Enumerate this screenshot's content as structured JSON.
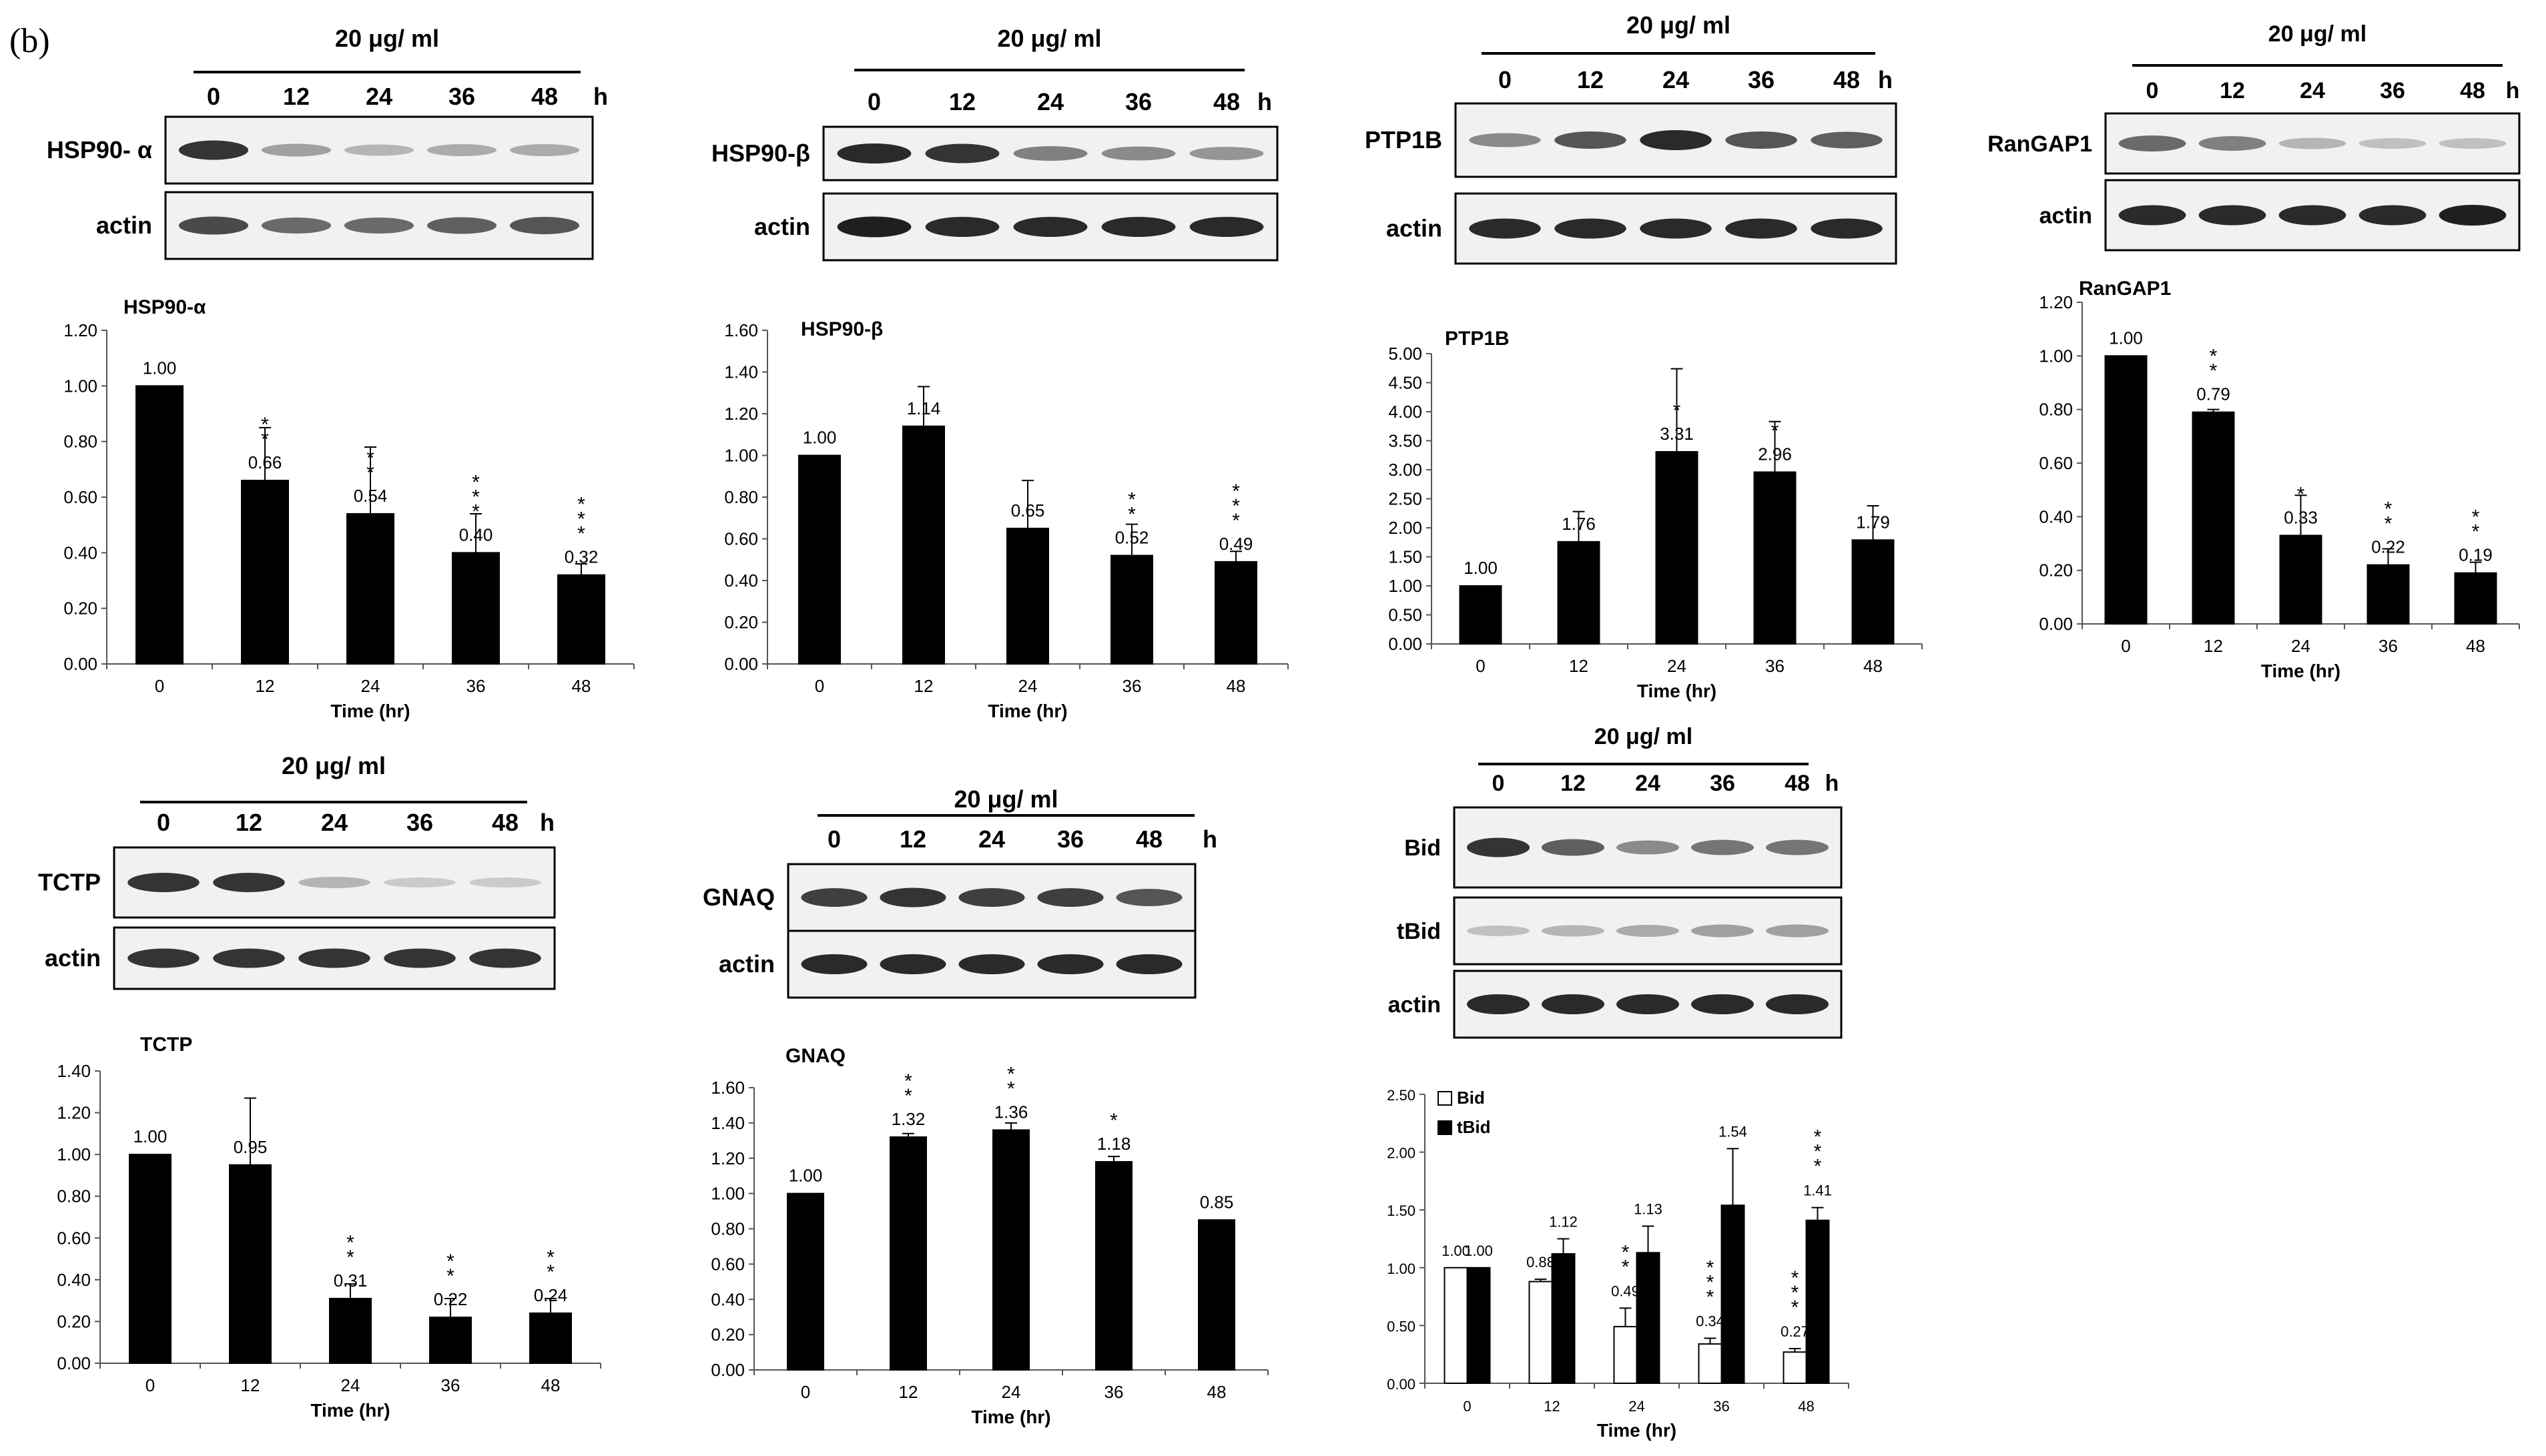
{
  "figure": {
    "panel_label": "(b)"
  },
  "blots": [
    {
      "conc_label": "20 μg/ ml",
      "lanes": [
        "0",
        "12",
        "24",
        "36",
        "48"
      ],
      "unit": "h",
      "rows": [
        {
          "label": "HSP90- α",
          "intensity": [
            0.85,
            0.35,
            0.25,
            0.3,
            0.3
          ]
        },
        {
          "label": "actin",
          "intensity": [
            0.75,
            0.6,
            0.6,
            0.65,
            0.7
          ]
        }
      ]
    },
    {
      "conc_label": "20 μg/ ml",
      "lanes": [
        "0",
        "12",
        "24",
        "36",
        "48"
      ],
      "unit": "h",
      "rows": [
        {
          "label": "HSP90-β",
          "intensity": [
            0.9,
            0.85,
            0.5,
            0.45,
            0.4
          ]
        },
        {
          "label": "actin",
          "intensity": [
            0.95,
            0.9,
            0.9,
            0.9,
            0.9
          ]
        }
      ]
    },
    {
      "conc_label": "20 μg/ ml",
      "lanes": [
        "0",
        "12",
        "24",
        "36",
        "48"
      ],
      "unit": "h",
      "rows": [
        {
          "label": "PTP1B",
          "intensity": [
            0.45,
            0.7,
            0.9,
            0.7,
            0.65
          ]
        },
        {
          "label": "actin",
          "intensity": [
            0.9,
            0.9,
            0.9,
            0.9,
            0.9
          ]
        }
      ]
    },
    {
      "conc_label": "20 μg/ ml",
      "lanes": [
        "0",
        "12",
        "24",
        "36",
        "48"
      ],
      "unit": "h",
      "rows": [
        {
          "label": "RanGAP1",
          "intensity": [
            0.6,
            0.5,
            0.25,
            0.2,
            0.2
          ]
        },
        {
          "label": "actin",
          "intensity": [
            0.9,
            0.9,
            0.9,
            0.9,
            0.95
          ]
        }
      ]
    },
    {
      "conc_label": "20 μg/ ml",
      "lanes": [
        "0",
        "12",
        "24",
        "36",
        "48"
      ],
      "unit": "h",
      "rows": [
        {
          "label": "TCTP",
          "intensity": [
            0.85,
            0.85,
            0.25,
            0.15,
            0.15
          ]
        },
        {
          "label": "actin",
          "intensity": [
            0.85,
            0.85,
            0.85,
            0.85,
            0.85
          ]
        }
      ]
    },
    {
      "conc_label": "20 μg/ ml",
      "lanes": [
        "0",
        "12",
        "24",
        "36",
        "48"
      ],
      "unit": "h",
      "rows": [
        {
          "label": "GNAQ",
          "intensity": [
            0.8,
            0.85,
            0.8,
            0.8,
            0.7
          ]
        },
        {
          "label": "actin",
          "intensity": [
            0.9,
            0.9,
            0.9,
            0.9,
            0.9
          ]
        }
      ]
    },
    {
      "conc_label": "20 μg/ ml",
      "lanes": [
        "0",
        "12",
        "24",
        "36",
        "48"
      ],
      "unit": "h",
      "rows": [
        {
          "label": "Bid",
          "intensity": [
            0.85,
            0.65,
            0.45,
            0.55,
            0.55
          ]
        },
        {
          "label": "tBid",
          "intensity": [
            0.2,
            0.25,
            0.3,
            0.35,
            0.35
          ]
        },
        {
          "label": "actin",
          "intensity": [
            0.9,
            0.9,
            0.9,
            0.9,
            0.9
          ]
        }
      ]
    }
  ],
  "chart_data": [
    {
      "type": "bar",
      "title": "HSP90-α",
      "xlabel": "Time (hr)",
      "ylabel": "",
      "categories": [
        "0",
        "12",
        "24",
        "36",
        "48"
      ],
      "ylim": [
        0,
        1.2
      ],
      "yticks": [
        "0.00",
        "0.20",
        "0.40",
        "0.60",
        "0.80",
        "1.00",
        "1.20"
      ],
      "values": [
        1.0,
        0.66,
        0.54,
        0.4,
        0.32
      ],
      "errors": [
        0,
        0.19,
        0.24,
        0.14,
        0.04
      ],
      "data_labels": [
        "1.00",
        "0.66",
        "0.54",
        "0.40",
        "0.32"
      ],
      "stars": [
        "",
        "**",
        "**",
        "***",
        "***"
      ]
    },
    {
      "type": "bar",
      "title": "HSP90-β",
      "xlabel": "Time (hr)",
      "ylabel": "",
      "categories": [
        "0",
        "12",
        "24",
        "36",
        "48"
      ],
      "ylim": [
        0,
        1.6
      ],
      "yticks": [
        "0.00",
        "0.20",
        "0.40",
        "0.60",
        "0.80",
        "1.00",
        "1.20",
        "1.40",
        "1.60"
      ],
      "values": [
        1.0,
        1.14,
        0.65,
        0.52,
        0.49
      ],
      "errors": [
        0,
        0.19,
        0.23,
        0.15,
        0.05
      ],
      "data_labels": [
        "1.00",
        "1.14",
        "0.65",
        "0.52",
        "0.49"
      ],
      "stars": [
        "",
        "",
        "",
        "**",
        "***"
      ]
    },
    {
      "type": "bar",
      "title": "PTP1B",
      "xlabel": "Time (hr)",
      "ylabel": "",
      "categories": [
        "0",
        "12",
        "24",
        "36",
        "48"
      ],
      "ylim": [
        0,
        5.0
      ],
      "yticks": [
        "0.00",
        "0.50",
        "1.00",
        "1.50",
        "2.00",
        "2.50",
        "3.00",
        "3.50",
        "4.00",
        "4.50",
        "5.00"
      ],
      "values": [
        1.0,
        1.76,
        3.31,
        2.96,
        1.79
      ],
      "errors": [
        0,
        0.52,
        1.43,
        0.87,
        0.59
      ],
      "data_labels": [
        "1.00",
        "1.76",
        "3.31",
        "2.96",
        "1.79"
      ],
      "stars": [
        "",
        "",
        "*",
        "*",
        ""
      ]
    },
    {
      "type": "bar",
      "title": "RanGAP1",
      "xlabel": "Time (hr)",
      "ylabel": "",
      "categories": [
        "0",
        "12",
        "24",
        "36",
        "48"
      ],
      "ylim": [
        0,
        1.2
      ],
      "yticks": [
        "0.00",
        "0.20",
        "0.40",
        "0.60",
        "0.80",
        "1.00",
        "1.20"
      ],
      "values": [
        1.0,
        0.79,
        0.33,
        0.22,
        0.19
      ],
      "errors": [
        0,
        0.01,
        0.15,
        0.06,
        0.04
      ],
      "data_labels": [
        "1.00",
        "0.79",
        "0.33",
        "0.22",
        "0.19"
      ],
      "stars": [
        "",
        "**",
        "*",
        "**",
        "**"
      ]
    },
    {
      "type": "bar",
      "title": "TCTP",
      "xlabel": "Time (hr)",
      "ylabel": "",
      "categories": [
        "0",
        "12",
        "24",
        "36",
        "48"
      ],
      "ylim": [
        0,
        1.4
      ],
      "yticks": [
        "0.00",
        "0.20",
        "0.40",
        "0.60",
        "0.80",
        "1.00",
        "1.20",
        "1.40"
      ],
      "values": [
        1.0,
        0.95,
        0.31,
        0.22,
        0.24
      ],
      "errors": [
        0,
        0.32,
        0.07,
        0.09,
        0.07
      ],
      "data_labels": [
        "1.00",
        "0.95",
        "0.31",
        "0.22",
        "0.24"
      ],
      "stars": [
        "",
        "",
        "**",
        "**",
        "**"
      ]
    },
    {
      "type": "bar",
      "title": "GNAQ",
      "xlabel": "Time (hr)",
      "ylabel": "",
      "categories": [
        "0",
        "12",
        "24",
        "36",
        "48"
      ],
      "ylim": [
        0,
        1.6
      ],
      "yticks": [
        "0.00",
        "0.20",
        "0.40",
        "0.60",
        "0.80",
        "1.00",
        "1.20",
        "1.40",
        "1.60"
      ],
      "values": [
        1.0,
        1.32,
        1.36,
        1.18,
        0.85
      ],
      "errors": [
        0,
        0.02,
        0.04,
        0.03,
        0
      ],
      "data_labels": [
        "1.00",
        "1.32",
        "1.36",
        "1.18",
        "0.85"
      ],
      "stars": [
        "",
        "**",
        "**",
        "*",
        ""
      ]
    },
    {
      "type": "bar",
      "title": "",
      "xlabel": "Time (hr)",
      "ylabel": "",
      "categories": [
        "0",
        "12",
        "24",
        "36",
        "48"
      ],
      "ylim": [
        0,
        2.5
      ],
      "yticks": [
        "0.00",
        "0.50",
        "1.00",
        "1.50",
        "2.00",
        "2.50"
      ],
      "legend_position": "top-left",
      "series": [
        {
          "name": "Bid",
          "fill": "white",
          "values": [
            1.0,
            0.88,
            0.49,
            0.34,
            0.27
          ],
          "errors": [
            0,
            0.02,
            0.16,
            0.05,
            0.03
          ],
          "data_labels": [
            "1.00",
            "0.88",
            "0.49",
            "0.34",
            "0.27"
          ],
          "stars": [
            "",
            "",
            "**",
            "***",
            "***"
          ]
        },
        {
          "name": "tBid",
          "fill": "black",
          "values": [
            1.0,
            1.12,
            1.13,
            1.54,
            1.41
          ],
          "errors": [
            0,
            0.13,
            0.23,
            0.49,
            0.11
          ],
          "data_labels": [
            "1.00",
            "1.12",
            "1.13",
            "1.54",
            "1.41"
          ],
          "stars": [
            "",
            "",
            "",
            "",
            "***"
          ]
        }
      ]
    }
  ]
}
